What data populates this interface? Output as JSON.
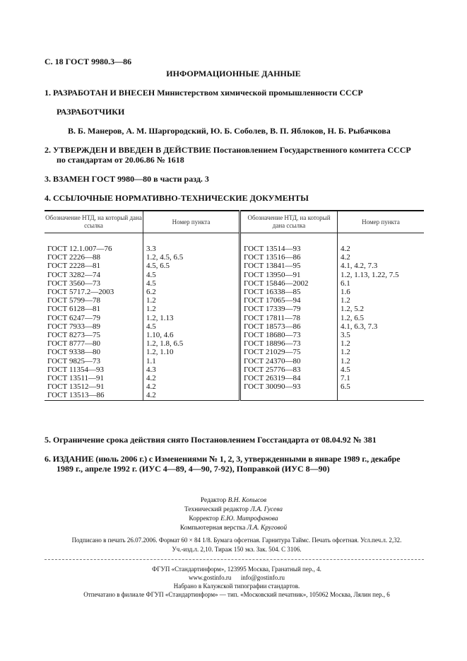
{
  "header": "С. 18 ГОСТ 9980.3—86",
  "title": "ИНФОРМАЦИОННЫЕ ДАННЫЕ",
  "s1": "1. РАЗРАБОТАН И ВНЕСЕН Министерством химической промышленности СССР",
  "developers_heading": "РАЗРАБОТЧИКИ",
  "developers": "В. Б. Манеров, А. М. Шаргородский, Ю. Б. Соболев, В. П. Яблоков, Н. Б. Рыбачкова",
  "s2a": "2. УТВЕРЖДЕН И ВВЕДЕН В ДЕЙСТВИЕ Постановлением Государственного комитета СССР",
  "s2b": "по стандартам от 20.06.86 № 1618",
  "s3": "3. ВЗАМЕН ГОСТ 9980—80 в части разд. 3",
  "s4": "4. ССЫЛОЧНЫЕ НОРМАТИВНО-ТЕХНИЧЕСКИЕ ДОКУМЕНТЫ",
  "table": {
    "h1": "Обозначение НТД, на который дана ссылка",
    "h2": "Номер пункта",
    "left": [
      [
        "ГОСТ 12.1.007—76",
        "3.3"
      ],
      [
        "ГОСТ 2226—88",
        "1.2, 4.5, 6.5"
      ],
      [
        "ГОСТ 2228—81",
        "4.5, 6.5"
      ],
      [
        "ГОСТ 3282—74",
        "4.5"
      ],
      [
        "ГОСТ 3560—73",
        "4.5"
      ],
      [
        "ГОСТ 5717.2—2003",
        "6.2"
      ],
      [
        "ГОСТ 5799—78",
        "1.2"
      ],
      [
        "ГОСТ 6128—81",
        "1.2"
      ],
      [
        "ГОСТ 6247—79",
        "1.2, 1.13"
      ],
      [
        "ГОСТ 7933—89",
        "4.5"
      ],
      [
        "ГОСТ 8273—75",
        "1.10, 4.6"
      ],
      [
        "ГОСТ 8777—80",
        "1.2, 1.8, 6.5"
      ],
      [
        "ГОСТ 9338—80",
        "1.2, 1.10"
      ],
      [
        "ГОСТ 9825—73",
        "1.1"
      ],
      [
        "ГОСТ 11354—93",
        "4.3"
      ],
      [
        "ГОСТ 13511—91",
        "4.2"
      ],
      [
        "ГОСТ 13512—91",
        "4.2"
      ],
      [
        "ГОСТ 13513—86",
        "4.2"
      ]
    ],
    "right": [
      [
        "ГОСТ 13514—93",
        "4.2"
      ],
      [
        "ГОСТ 13516—86",
        "4.2"
      ],
      [
        "ГОСТ 13841—95",
        "4.1, 4.2, 7.3"
      ],
      [
        "ГОСТ 13950—91",
        "1.2, 1.13, 1.22, 7.5"
      ],
      [
        "ГОСТ 15846—2002",
        "6.1"
      ],
      [
        "ГОСТ 16338—85",
        "1.6"
      ],
      [
        "ГОСТ 17065—94",
        "1.2"
      ],
      [
        "ГОСТ 17339—79",
        "1.2, 5.2"
      ],
      [
        "ГОСТ 17811—78",
        "1.2, 6.5"
      ],
      [
        "ГОСТ 18573—86",
        "4.1, 6.3, 7.3"
      ],
      [
        "ГОСТ 18680—73",
        "3.5"
      ],
      [
        "ГОСТ 18896—73",
        "1.2"
      ],
      [
        "ГОСТ 21029—75",
        "1.2"
      ],
      [
        "ГОСТ 24370—80",
        "1.2"
      ],
      [
        "ГОСТ 25776—83",
        "4.5"
      ],
      [
        "ГОСТ 26319—84",
        "7.1"
      ],
      [
        "ГОСТ 30090—93",
        "6.5"
      ]
    ]
  },
  "s5": "5. Ограничение срока действия снято Постановлением Госстандарта от 08.04.92 № 381",
  "s6a": "6. ИЗДАНИЕ (июль 2006 г.) с Изменениями № 1, 2, 3, утвержденными в январе 1989 г., декабре",
  "s6b": "1989 г., апреле 1992 г. (ИУС 4—89, 4—90, 7-92), Поправкой (ИУС 8—90)",
  "credits": [
    [
      "Редактор",
      "В.Н. Копысов"
    ],
    [
      "Технический редактор",
      "Л.А. Гусева"
    ],
    [
      "Корректор",
      "Е.Ю. Митрофанова"
    ],
    [
      "Компьютерная верстка",
      "Л.А. Круговой"
    ]
  ],
  "print1": "Подписано в печать 26.07.2006. Формат 60 × 84 1/8. Бумага офсетная. Гарнитура Таймс. Печать офсетная. Усл.печ.л. 2,32.",
  "print2": "Уч.-изд.л. 2,10. Тираж 150 экз. Зак. 504. С 3106.",
  "footer": [
    "ФГУП «Стандартинформ», 123995 Москва, Гранатный пер., 4.",
    "www.gostinfo.ru      info@gostinfo.ru",
    "Набрано в Калужской типографии стандартов.",
    "Отпечатано в филиале ФГУП «Стандартинформ» — тип. «Московский печатник», 105062 Москва, Лялин пер., 6"
  ]
}
